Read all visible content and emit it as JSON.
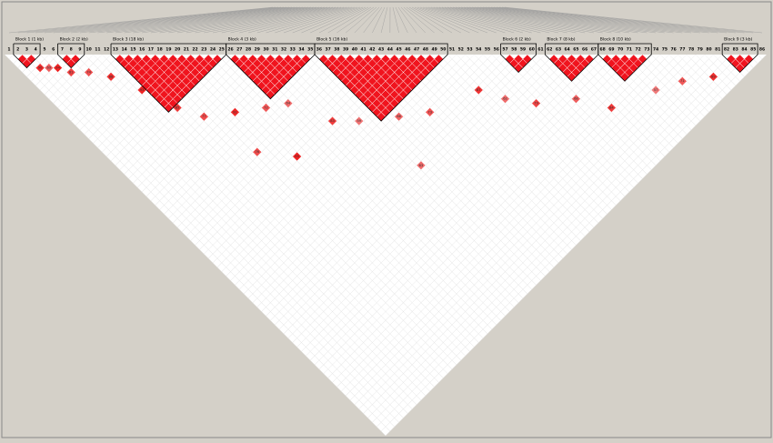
{
  "ld_plot": {
    "markers": [
      "1",
      "2",
      "3",
      "4",
      "5",
      "6",
      "7",
      "8",
      "9",
      "10",
      "11",
      "12",
      "13",
      "14",
      "15",
      "16",
      "17",
      "18",
      "19",
      "20",
      "21",
      "22",
      "23",
      "24",
      "25",
      "26",
      "27",
      "28",
      "29",
      "30",
      "31",
      "32",
      "33",
      "34",
      "35",
      "36",
      "37",
      "38",
      "39",
      "40",
      "41",
      "42",
      "43",
      "44",
      "45",
      "46",
      "47",
      "48",
      "49",
      "50",
      "51",
      "52",
      "53",
      "54",
      "55",
      "56",
      "57",
      "58",
      "59",
      "60",
      "61",
      "62",
      "63",
      "64",
      "65",
      "66",
      "67",
      "68",
      "69",
      "70",
      "71",
      "72",
      "73",
      "74",
      "75",
      "76",
      "77",
      "78",
      "79",
      "80",
      "81",
      "82",
      "83",
      "84",
      "85",
      "86"
    ],
    "blocks": [
      {
        "label": "Block 1 (1 kb)",
        "start": 2,
        "end": 4
      },
      {
        "label": "Block 2 (2 kb)",
        "start": 7,
        "end": 9
      },
      {
        "label": "Block 3 (18 kb)",
        "start": 13,
        "end": 25
      },
      {
        "label": "Block 4 (3 kb)",
        "start": 26,
        "end": 35
      },
      {
        "label": "Block 5 (16 kb)",
        "start": 36,
        "end": 50
      },
      {
        "label": "Block 6 (2 kb)",
        "start": 57,
        "end": 60
      },
      {
        "label": "Block 7 (8 kb)",
        "start": 62,
        "end": 67
      },
      {
        "label": "Block 8 (10 kb)",
        "start": 68,
        "end": 73
      },
      {
        "label": "Block 9 (3 kb)",
        "start": 82,
        "end": 85
      }
    ],
    "cells": [
      {
        "a": 3,
        "b": 6,
        "d": 90
      },
      {
        "a": 4,
        "b": 7,
        "d": 69
      },
      {
        "a": 5,
        "b": 8,
        "d": 94
      },
      {
        "a": 6,
        "b": 10,
        "d": 81
      },
      {
        "a": 8,
        "b": 12,
        "d": 74
      },
      {
        "a": 10,
        "b": 15,
        "d": 88
      },
      {
        "a": 12,
        "b": 20,
        "d": 93
      },
      {
        "a": 14,
        "b": 26,
        "d": 85
      },
      {
        "a": 16,
        "b": 30,
        "d": 77
      },
      {
        "a": 20,
        "b": 33,
        "d": 91
      },
      {
        "a": 24,
        "b": 36,
        "d": 72
      },
      {
        "a": 27,
        "b": 38,
        "d": 64
      },
      {
        "a": 30,
        "b": 45,
        "d": 83
      },
      {
        "a": 33,
        "b": 48,
        "d": 59
      },
      {
        "a": 38,
        "b": 52,
        "d": 66
      },
      {
        "a": 42,
        "b": 55,
        "d": 73
      },
      {
        "a": 50,
        "b": 58,
        "d": 87
      },
      {
        "a": 52,
        "b": 62,
        "d": 62
      },
      {
        "a": 55,
        "b": 66,
        "d": 79
      },
      {
        "a": 60,
        "b": 70,
        "d": 68
      },
      {
        "a": 63,
        "b": 75,
        "d": 84
      },
      {
        "a": 70,
        "b": 78,
        "d": 57
      },
      {
        "a": 74,
        "b": 80,
        "d": 71
      },
      {
        "a": 78,
        "b": 83,
        "d": 89
      },
      {
        "a": 22,
        "b": 45,
        "d": 95
      },
      {
        "a": 35,
        "b": 60,
        "d": 63
      },
      {
        "a": 18,
        "b": 40,
        "d": 76
      }
    ]
  }
}
